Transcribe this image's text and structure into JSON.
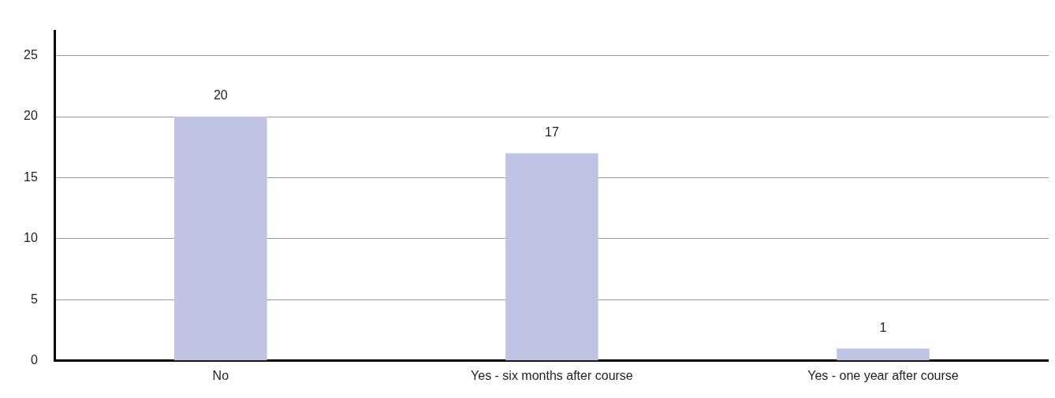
{
  "chart_data": {
    "type": "bar",
    "categories": [
      "No",
      "Yes - six months after course",
      "Yes - one year after course"
    ],
    "values": [
      20,
      17,
      1
    ],
    "color": "#c0c4e4",
    "data_labels": true,
    "ylim": [
      0,
      27
    ],
    "yticks": [
      0,
      5,
      10,
      15,
      20,
      25
    ],
    "grid": "y"
  }
}
